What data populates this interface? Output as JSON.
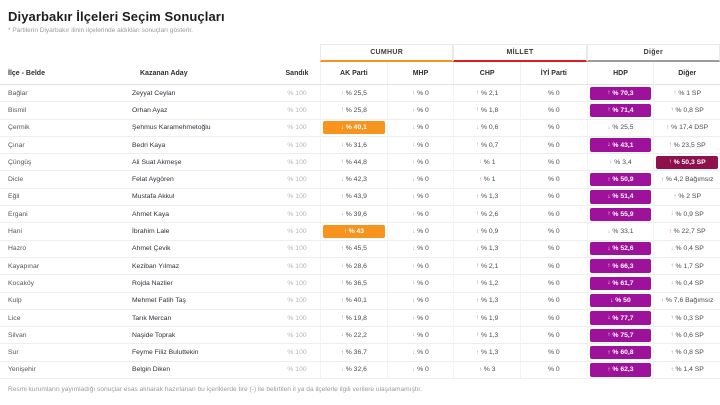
{
  "page": {
    "title": "Diyarbakır İlçeleri Seçim Sonuçları",
    "subtitle": "* Partilerin Diyarbakır ilinin ilçelerinde aldıkları sonuçları gösterir.",
    "footnote": "Resmi kurumların yayımladığı sonuçlar esas alınarak hazırlanan bu içeriklerde tire (-) ile belirtilen il ya da ilçelerle ilgili verilere ulaşılamamıştır."
  },
  "table": {
    "groups": [
      {
        "label": "CUMHUR",
        "underline_color": "#F7941D"
      },
      {
        "label": "MİLLET",
        "underline_color": "#E11B22"
      },
      {
        "label": "Diğer",
        "underline_color": "#9B9B9B"
      }
    ],
    "columns": {
      "district": "İlçe - Belde",
      "candidate": "Kazanan Aday",
      "ballot": "Sandık",
      "akp": "AK Parti",
      "mhp": "MHP",
      "chp": "CHP",
      "iyi": "İYİ Parti",
      "hdp": "HDP",
      "other": "Diğer"
    },
    "winner_colors": {
      "akp": "#F7941D",
      "hdp": "#9E129B",
      "other": "#8E114B"
    },
    "trend_colors": {
      "up": "#E0604A",
      "down": "#8C9BD8"
    },
    "rows": [
      {
        "district": "Bağlar",
        "candidate": "Zeyyat Ceylan",
        "sandik": "% 100",
        "results": [
          {
            "party": "akp",
            "trend": "down",
            "value": "% 25,5"
          },
          {
            "party": "mhp",
            "trend": "down",
            "value": "% 0"
          },
          {
            "party": "chp",
            "trend": "up",
            "value": "% 2,1"
          },
          {
            "party": "iyi",
            "trend": "",
            "value": "% 0"
          },
          {
            "party": "hdp",
            "trend": "up",
            "value": "% 70,3",
            "winner": true
          },
          {
            "party": "other",
            "trend": "up",
            "value": "% 1 SP"
          }
        ]
      },
      {
        "district": "Bismil",
        "candidate": "Orhan Ayaz",
        "sandik": "% 100",
        "results": [
          {
            "party": "akp",
            "trend": "up",
            "value": "% 25,8"
          },
          {
            "party": "mhp",
            "trend": "down",
            "value": "% 0"
          },
          {
            "party": "chp",
            "trend": "up",
            "value": "% 1,8"
          },
          {
            "party": "iyi",
            "trend": "",
            "value": "% 0"
          },
          {
            "party": "hdp",
            "trend": "up",
            "value": "% 71,4",
            "winner": true
          },
          {
            "party": "other",
            "trend": "up",
            "value": "% 0,8 SP"
          }
        ]
      },
      {
        "district": "Çermik",
        "candidate": "Şehmus Karamehmetoğlu",
        "sandik": "% 100",
        "results": [
          {
            "party": "akp",
            "trend": "down",
            "value": "% 40,1",
            "winner": true
          },
          {
            "party": "mhp",
            "trend": "down",
            "value": "% 0"
          },
          {
            "party": "chp",
            "trend": "down",
            "value": "% 0,6"
          },
          {
            "party": "iyi",
            "trend": "",
            "value": "% 0"
          },
          {
            "party": "hdp",
            "trend": "down",
            "value": "% 25,5"
          },
          {
            "party": "other",
            "trend": "up",
            "value": "% 17,4 DSP"
          }
        ]
      },
      {
        "district": "Çınar",
        "candidate": "Bedri Kaya",
        "sandik": "% 100",
        "results": [
          {
            "party": "akp",
            "trend": "down",
            "value": "% 31,6"
          },
          {
            "party": "mhp",
            "trend": "down",
            "value": "% 0"
          },
          {
            "party": "chp",
            "trend": "up",
            "value": "% 0,7"
          },
          {
            "party": "iyi",
            "trend": "",
            "value": "% 0"
          },
          {
            "party": "hdp",
            "trend": "down",
            "value": "% 43,1",
            "winner": true
          },
          {
            "party": "other",
            "trend": "up",
            "value": "% 23,5 SP"
          }
        ]
      },
      {
        "district": "Çüngüş",
        "candidate": "Ali Suat Akmeşe",
        "sandik": "% 100",
        "results": [
          {
            "party": "akp",
            "trend": "up",
            "value": "% 44,8"
          },
          {
            "party": "mhp",
            "trend": "down",
            "value": "% 0"
          },
          {
            "party": "chp",
            "trend": "down",
            "value": "% 1"
          },
          {
            "party": "iyi",
            "trend": "",
            "value": "% 0"
          },
          {
            "party": "hdp",
            "trend": "down",
            "value": "% 3,4"
          },
          {
            "party": "other",
            "trend": "up",
            "value": "% 50,3 SP",
            "winner": true
          }
        ]
      },
      {
        "district": "Dicle",
        "candidate": "Felat Aygören",
        "sandik": "% 100",
        "results": [
          {
            "party": "akp",
            "trend": "down",
            "value": "% 42,3"
          },
          {
            "party": "mhp",
            "trend": "down",
            "value": "% 0"
          },
          {
            "party": "chp",
            "trend": "up",
            "value": "% 1"
          },
          {
            "party": "iyi",
            "trend": "",
            "value": "% 0"
          },
          {
            "party": "hdp",
            "trend": "up",
            "value": "% 50,9",
            "winner": true
          },
          {
            "party": "other",
            "trend": "up",
            "value": "% 4,2 Bağımsız"
          }
        ]
      },
      {
        "district": "Eğil",
        "candidate": "Mustafa Akkul",
        "sandik": "% 100",
        "results": [
          {
            "party": "akp",
            "trend": "up",
            "value": "% 43,9"
          },
          {
            "party": "mhp",
            "trend": "down",
            "value": "% 0"
          },
          {
            "party": "chp",
            "trend": "up",
            "value": "% 1,3"
          },
          {
            "party": "iyi",
            "trend": "",
            "value": "% 0"
          },
          {
            "party": "hdp",
            "trend": "down",
            "value": "% 51,4",
            "winner": true
          },
          {
            "party": "other",
            "trend": "up",
            "value": "% 2 SP"
          }
        ]
      },
      {
        "district": "Ergani",
        "candidate": "Ahmet Kaya",
        "sandik": "% 100",
        "results": [
          {
            "party": "akp",
            "trend": "down",
            "value": "% 39,6"
          },
          {
            "party": "mhp",
            "trend": "down",
            "value": "% 0"
          },
          {
            "party": "chp",
            "trend": "up",
            "value": "% 2,6"
          },
          {
            "party": "iyi",
            "trend": "",
            "value": "% 0"
          },
          {
            "party": "hdp",
            "trend": "up",
            "value": "% 55,9",
            "winner": true
          },
          {
            "party": "other",
            "trend": "down",
            "value": "% 0,9 SP"
          }
        ]
      },
      {
        "district": "Hani",
        "candidate": "İbrahim Lale",
        "sandik": "% 100",
        "results": [
          {
            "party": "akp",
            "trend": "up",
            "value": "% 43",
            "winner": true
          },
          {
            "party": "mhp",
            "trend": "down",
            "value": "% 0"
          },
          {
            "party": "chp",
            "trend": "up",
            "value": "% 0,9"
          },
          {
            "party": "iyi",
            "trend": "",
            "value": "% 0"
          },
          {
            "party": "hdp",
            "trend": "down",
            "value": "% 33,1"
          },
          {
            "party": "other",
            "trend": "up",
            "value": "% 22,7 SP"
          }
        ]
      },
      {
        "district": "Hazro",
        "candidate": "Ahmet Çevik",
        "sandik": "% 100",
        "results": [
          {
            "party": "akp",
            "trend": "up",
            "value": "% 45,5"
          },
          {
            "party": "mhp",
            "trend": "down",
            "value": "% 0"
          },
          {
            "party": "chp",
            "trend": "down",
            "value": "% 1,3"
          },
          {
            "party": "iyi",
            "trend": "",
            "value": "% 0"
          },
          {
            "party": "hdp",
            "trend": "down",
            "value": "% 52,6",
            "winner": true
          },
          {
            "party": "other",
            "trend": "down",
            "value": "% 0,4 SP"
          }
        ]
      },
      {
        "district": "Kayapınar",
        "candidate": "Keziban Yılmaz",
        "sandik": "% 100",
        "results": [
          {
            "party": "akp",
            "trend": "down",
            "value": "% 28,6"
          },
          {
            "party": "mhp",
            "trend": "down",
            "value": "% 0"
          },
          {
            "party": "chp",
            "trend": "up",
            "value": "% 2,1"
          },
          {
            "party": "iyi",
            "trend": "",
            "value": "% 0"
          },
          {
            "party": "hdp",
            "trend": "up",
            "value": "% 66,3",
            "winner": true
          },
          {
            "party": "other",
            "trend": "up",
            "value": "% 1,7 SP"
          }
        ]
      },
      {
        "district": "Kocaköy",
        "candidate": "Rojda Nazlier",
        "sandik": "% 100",
        "results": [
          {
            "party": "akp",
            "trend": "up",
            "value": "% 36,5"
          },
          {
            "party": "mhp",
            "trend": "down",
            "value": "% 0"
          },
          {
            "party": "chp",
            "trend": "up",
            "value": "% 1,2"
          },
          {
            "party": "iyi",
            "trend": "",
            "value": "% 0"
          },
          {
            "party": "hdp",
            "trend": "down",
            "value": "% 61,7",
            "winner": true
          },
          {
            "party": "other",
            "trend": "down",
            "value": "% 0,4 SP"
          }
        ]
      },
      {
        "district": "Kulp",
        "candidate": "Mehmet Fatih Taş",
        "sandik": "% 100",
        "results": [
          {
            "party": "akp",
            "trend": "up",
            "value": "% 40,1"
          },
          {
            "party": "mhp",
            "trend": "down",
            "value": "% 0"
          },
          {
            "party": "chp",
            "trend": "up",
            "value": "% 1,3"
          },
          {
            "party": "iyi",
            "trend": "",
            "value": "% 0"
          },
          {
            "party": "hdp",
            "trend": "down",
            "value": "% 50",
            "winner": true
          },
          {
            "party": "other",
            "trend": "up",
            "value": "% 7,6 Bağımsız"
          }
        ]
      },
      {
        "district": "Lice",
        "candidate": "Tarık Mercan",
        "sandik": "% 100",
        "results": [
          {
            "party": "akp",
            "trend": "up",
            "value": "% 19,8"
          },
          {
            "party": "mhp",
            "trend": "down",
            "value": "% 0"
          },
          {
            "party": "chp",
            "trend": "up",
            "value": "% 1,9"
          },
          {
            "party": "iyi",
            "trend": "",
            "value": "% 0"
          },
          {
            "party": "hdp",
            "trend": "down",
            "value": "% 77,7",
            "winner": true
          },
          {
            "party": "other",
            "trend": "up",
            "value": "% 0,3 SP"
          }
        ]
      },
      {
        "district": "Silvan",
        "candidate": "Naşide Toprak",
        "sandik": "% 100",
        "results": [
          {
            "party": "akp",
            "trend": "down",
            "value": "% 22,2"
          },
          {
            "party": "mhp",
            "trend": "down",
            "value": "% 0"
          },
          {
            "party": "chp",
            "trend": "up",
            "value": "% 1,3"
          },
          {
            "party": "iyi",
            "trend": "",
            "value": "% 0"
          },
          {
            "party": "hdp",
            "trend": "up",
            "value": "% 75,7",
            "winner": true
          },
          {
            "party": "other",
            "trend": "up",
            "value": "% 0,6 SP"
          }
        ]
      },
      {
        "district": "Sur",
        "candidate": "Feyme Filiz Buluttekin",
        "sandik": "% 100",
        "results": [
          {
            "party": "akp",
            "trend": "up",
            "value": "% 36,7"
          },
          {
            "party": "mhp",
            "trend": "down",
            "value": "% 0"
          },
          {
            "party": "chp",
            "trend": "up",
            "value": "% 1,3"
          },
          {
            "party": "iyi",
            "trend": "",
            "value": "% 0"
          },
          {
            "party": "hdp",
            "trend": "up",
            "value": "% 60,8",
            "winner": true
          },
          {
            "party": "other",
            "trend": "up",
            "value": "% 0,8 SP"
          }
        ]
      },
      {
        "district": "Yenişehir",
        "candidate": "Belgin Diken",
        "sandik": "% 100",
        "results": [
          {
            "party": "akp",
            "trend": "down",
            "value": "% 32,6"
          },
          {
            "party": "mhp",
            "trend": "down",
            "value": "% 0"
          },
          {
            "party": "chp",
            "trend": "up",
            "value": "% 3"
          },
          {
            "party": "iyi",
            "trend": "",
            "value": "% 0"
          },
          {
            "party": "hdp",
            "trend": "up",
            "value": "% 62,3",
            "winner": true
          },
          {
            "party": "other",
            "trend": "up",
            "value": "% 1,4 SP"
          }
        ]
      }
    ]
  }
}
